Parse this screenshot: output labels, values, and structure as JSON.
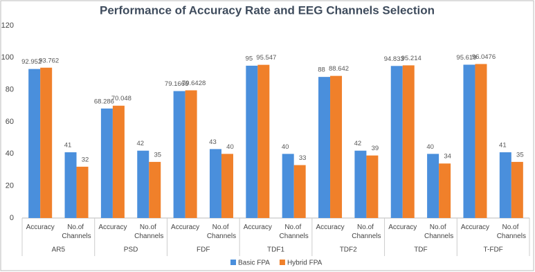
{
  "chart_data": {
    "type": "bar",
    "title": "Performance of Accuracy Rate and EEG Channels Selection",
    "groups": [
      "AR5",
      "PSD",
      "FDF",
      "TDF1",
      "TDF2",
      "TDF",
      "T-FDF"
    ],
    "categories": [
      "Accuracy",
      "No.of Channels",
      "Accuracy",
      "No.of Channels",
      "Accuracy",
      "No.of Channels",
      "Accuracy",
      "No.of Channels",
      "Accuracy",
      "No.of Channels",
      "Accuracy",
      "No.of Channels",
      "Accuracy",
      "No.of Channels"
    ],
    "series": [
      {
        "name": "Basic FPA",
        "color": "#4a8fdc",
        "values": [
          92.952,
          41,
          68.286,
          42,
          79.1666,
          43,
          95,
          40,
          88,
          42,
          94.833,
          40,
          95.619,
          41
        ]
      },
      {
        "name": "Hybrid FPA",
        "color": "#f0802a",
        "values": [
          93.762,
          32,
          70.048,
          35,
          79.6428,
          40,
          95.547,
          33,
          88.642,
          39,
          95.214,
          34,
          96.0476,
          35
        ]
      }
    ],
    "ylim": [
      0,
      120
    ],
    "yticks": [
      0,
      20,
      40,
      60,
      80,
      100,
      120
    ],
    "grid": false,
    "legend": "bottom"
  }
}
